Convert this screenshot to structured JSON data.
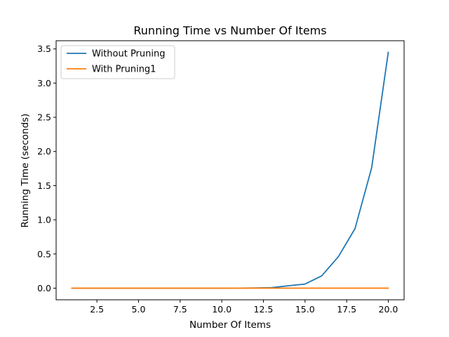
{
  "chart_data": {
    "type": "line",
    "title": "Running Time vs Number Of Items",
    "xlabel": "Number Of Items",
    "ylabel": "Running Time (seconds)",
    "xlim": [
      0.05,
      20.95
    ],
    "ylim": [
      -0.17,
      3.62
    ],
    "xticks": [
      2.5,
      5.0,
      7.5,
      10.0,
      12.5,
      15.0,
      17.5,
      20.0
    ],
    "xtick_labels": [
      "2.5",
      "5.0",
      "7.5",
      "10.0",
      "12.5",
      "15.0",
      "17.5",
      "20.0"
    ],
    "yticks": [
      0.0,
      0.5,
      1.0,
      1.5,
      2.0,
      2.5,
      3.0,
      3.5
    ],
    "ytick_labels": [
      "0.0",
      "0.5",
      "1.0",
      "1.5",
      "2.0",
      "2.5",
      "3.0",
      "3.5"
    ],
    "grid": false,
    "legend_position": "upper-left",
    "x": [
      1,
      2,
      3,
      4,
      5,
      6,
      7,
      8,
      9,
      10,
      11,
      12,
      13,
      14,
      15,
      16,
      17,
      18,
      19,
      20
    ],
    "series": [
      {
        "name": "Without Pruning",
        "color": "#1f77b4",
        "values": [
          0.0,
          0.0,
          0.0,
          0.0,
          0.0,
          0.0,
          0.0,
          0.0,
          0.0,
          0.0,
          0.001,
          0.003,
          0.008,
          0.035,
          0.06,
          0.18,
          0.46,
          0.87,
          1.76,
          3.45
        ]
      },
      {
        "name": "With Pruning1",
        "color": "#ff7f0e",
        "values": [
          0.0,
          0.0,
          0.0,
          0.0,
          0.0,
          0.0,
          0.0,
          0.0,
          0.0,
          0.0,
          0.0,
          0.0,
          0.0,
          0.0,
          0.0,
          0.0,
          0.0,
          0.0,
          0.0,
          0.0
        ]
      }
    ]
  }
}
